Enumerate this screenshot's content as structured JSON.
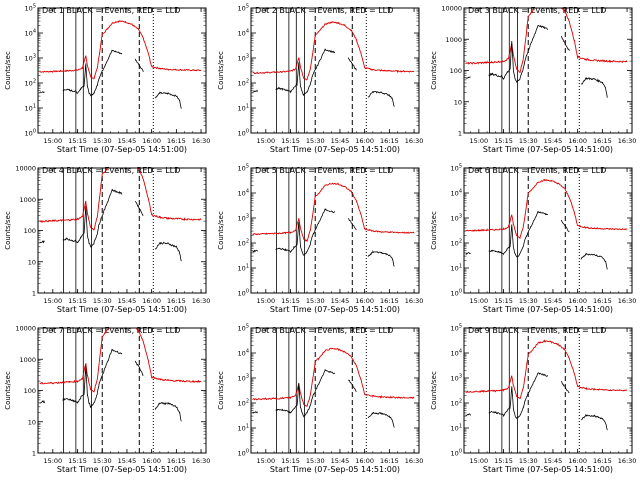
{
  "page": {
    "background": "#ffffff",
    "axis_color": "#000000",
    "events_color": "#000000",
    "lld_color": "#dd0000"
  },
  "chart_data": [
    {
      "type": "line",
      "title": "Det 1  BLACK = Events, RED = LLD",
      "xlabel": "Start Time (07-Sep-05 14:51:00)",
      "ylabel": "Counts/sec",
      "x_tick_labels": [
        "15:00",
        "15:15",
        "15:30",
        "15:45",
        "16:00",
        "16:15",
        "16:30"
      ],
      "xlim": [
        "14:51",
        "16:33"
      ],
      "yscale": "log",
      "ylim": [
        1,
        100000
      ],
      "y_tick_labels": [
        "10^0",
        "10^1",
        "10^2",
        "10^3",
        "10^4",
        "10^5"
      ],
      "y_tick_values": [
        1,
        10,
        100,
        1000,
        10000,
        100000
      ],
      "events_key": "detector_profile",
      "events_scale": 1.0,
      "lld_scale": 1.0
    },
    {
      "type": "line",
      "title": "Det 2  BLACK = Events, RED = LLD",
      "xlabel": "Start Time (07-Sep-05 14:51:00)",
      "ylabel": "Counts/sec",
      "x_tick_labels": [
        "15:00",
        "15:15",
        "15:30",
        "15:45",
        "16:00",
        "16:15",
        "16:30"
      ],
      "xlim": [
        "14:51",
        "16:33"
      ],
      "yscale": "log",
      "ylim": [
        1,
        100000
      ],
      "y_tick_labels": [
        "10^0",
        "10^1",
        "10^2",
        "10^3",
        "10^4",
        "10^5"
      ],
      "y_tick_values": [
        1,
        10,
        100,
        1000,
        10000,
        100000
      ],
      "events_scale": 1.1,
      "lld_scale": 0.9
    },
    {
      "type": "line",
      "title": "Det 3  BLACK = Events, RED = LLD",
      "xlabel": "Start Time (07-Sep-05 14:51:00)",
      "ylabel": "Counts/sec",
      "x_tick_labels": [
        "15:00",
        "15:15",
        "15:30",
        "15:45",
        "16:00",
        "16:15",
        "16:30"
      ],
      "xlim": [
        "14:51",
        "16:33"
      ],
      "yscale": "log",
      "ylim": [
        1,
        10000
      ],
      "y_tick_labels": [
        "1",
        "10",
        "100",
        "1000",
        "10000"
      ],
      "y_tick_values": [
        1,
        10,
        100,
        1000,
        10000
      ],
      "events_scale": 1.4,
      "lld_scale": 0.6
    },
    {
      "type": "line",
      "title": "Det 4  BLACK = Events, RED = LLD",
      "xlabel": "Start Time (07-Sep-05 14:51:00)",
      "ylabel": "Counts/sec",
      "x_tick_labels": [
        "15:00",
        "15:15",
        "15:30",
        "15:45",
        "16:00",
        "16:15",
        "16:30"
      ],
      "xlim": [
        "14:51",
        "16:33"
      ],
      "yscale": "log",
      "ylim": [
        1,
        10000
      ],
      "y_tick_labels": [
        "1",
        "10",
        "100",
        "1000",
        "10000"
      ],
      "y_tick_values": [
        1,
        10,
        100,
        1000,
        10000
      ],
      "events_scale": 1.0,
      "lld_scale": 0.7
    },
    {
      "type": "line",
      "title": "Det 5  BLACK = Events, RED = LLD",
      "xlabel": "Start Time (07-Sep-05 14:51:00)",
      "ylabel": "Counts/sec",
      "x_tick_labels": [
        "15:00",
        "15:15",
        "15:30",
        "15:45",
        "16:00",
        "16:15",
        "16:30"
      ],
      "xlim": [
        "14:51",
        "16:33"
      ],
      "yscale": "log",
      "ylim": [
        1,
        100000
      ],
      "y_tick_labels": [
        "10^0",
        "10^1",
        "10^2",
        "10^3",
        "10^4",
        "10^5"
      ],
      "y_tick_values": [
        1,
        10,
        100,
        1000,
        10000,
        100000
      ],
      "events_scale": 1.1,
      "lld_scale": 0.8
    },
    {
      "type": "line",
      "title": "Det 6  BLACK = Events, RED = LLD",
      "xlabel": "Start Time (07-Sep-05 14:51:00)",
      "ylabel": "Counts/sec",
      "x_tick_labels": [
        "15:00",
        "15:15",
        "15:30",
        "15:45",
        "16:00",
        "16:15",
        "16:30"
      ],
      "xlim": [
        "14:51",
        "16:33"
      ],
      "yscale": "log",
      "ylim": [
        1,
        100000
      ],
      "y_tick_labels": [
        "10^0",
        "10^1",
        "10^2",
        "10^3",
        "10^4",
        "10^5"
      ],
      "y_tick_values": [
        1,
        10,
        100,
        1000,
        10000,
        100000
      ],
      "events_scale": 0.9,
      "lld_scale": 1.1
    },
    {
      "type": "line",
      "title": "Det 7  BLACK = Events, RED = LLD",
      "xlabel": "Start Time (07-Sep-05 14:51:00)",
      "ylabel": "Counts/sec",
      "x_tick_labels": [
        "15:00",
        "15:15",
        "15:30",
        "15:45",
        "16:00",
        "16:15",
        "16:30"
      ],
      "xlim": [
        "14:51",
        "16:33"
      ],
      "yscale": "log",
      "ylim": [
        1,
        10000
      ],
      "y_tick_labels": [
        "1",
        "10",
        "100",
        "1000",
        "10000"
      ],
      "y_tick_values": [
        1,
        10,
        100,
        1000,
        10000
      ],
      "events_scale": 1.0,
      "lld_scale": 0.6
    },
    {
      "type": "line",
      "title": "Det 8  BLACK = Events, RED = LLD",
      "xlabel": "Start Time (07-Sep-05 14:51:00)",
      "ylabel": "Counts/sec",
      "x_tick_labels": [
        "15:00",
        "15:15",
        "15:30",
        "15:45",
        "16:00",
        "16:15",
        "16:30"
      ],
      "xlim": [
        "14:51",
        "16:33"
      ],
      "yscale": "log",
      "ylim": [
        1,
        100000
      ],
      "y_tick_labels": [
        "10^0",
        "10^1",
        "10^2",
        "10^3",
        "10^4",
        "10^5"
      ],
      "y_tick_values": [
        1,
        10,
        100,
        1000,
        10000,
        100000
      ],
      "events_scale": 1.0,
      "lld_scale": 0.5
    },
    {
      "type": "line",
      "title": "Det 9  BLACK = Events, RED = LLD",
      "xlabel": "Start Time (07-Sep-05 14:51:00)",
      "ylabel": "Counts/sec",
      "x_tick_labels": [
        "15:00",
        "15:15",
        "15:30",
        "15:45",
        "16:00",
        "16:15",
        "16:30"
      ],
      "xlim": [
        "14:51",
        "16:33"
      ],
      "yscale": "log",
      "ylim": [
        1,
        100000
      ],
      "y_tick_labels": [
        "10^0",
        "10^1",
        "10^2",
        "10^3",
        "10^4",
        "10^5"
      ],
      "y_tick_values": [
        1,
        10,
        100,
        1000,
        10000,
        100000
      ],
      "events_scale": 0.8,
      "lld_scale": 1.0
    }
  ],
  "time_markers": {
    "solid_minutes": [
      15.5,
      23,
      27.5,
      32.5
    ],
    "dashed_minutes": [
      39,
      61.5
    ],
    "dotted_minutes": [
      70
    ]
  },
  "detector_profile": {
    "events": [
      [
        "14:52",
        40
      ],
      [
        "14:54",
        45
      ],
      [
        "14:55",
        42
      ],
      [
        "15:06",
        50
      ],
      [
        "15:08",
        55
      ],
      [
        "15:10",
        52
      ],
      [
        "15:12",
        48
      ],
      [
        "15:14",
        45
      ],
      [
        "15:15",
        40
      ],
      [
        "15:17",
        60
      ],
      [
        "15:19",
        80
      ],
      [
        "15:20",
        600
      ],
      [
        "15:21",
        70
      ],
      [
        "15:22",
        40
      ],
      [
        "15:23",
        30
      ],
      [
        "15:25",
        40
      ],
      [
        "15:27",
        80
      ],
      [
        "15:28",
        150
      ],
      [
        "15:29",
        220
      ],
      [
        "15:30",
        300
      ],
      [
        "15:36",
        2000
      ],
      [
        "15:42",
        1500
      ],
      [
        "15:50",
        900
      ],
      [
        "15:55",
        300
      ],
      [
        "16:02",
        25
      ],
      [
        "16:05",
        40
      ],
      [
        "16:10",
        38
      ],
      [
        "16:15",
        30
      ],
      [
        "16:17",
        20
      ],
      [
        "16:18",
        10
      ]
    ],
    "lld": [
      [
        "14:52",
        280
      ],
      [
        "15:00",
        290
      ],
      [
        "15:05",
        300
      ],
      [
        "15:10",
        310
      ],
      [
        "15:15",
        330
      ],
      [
        "15:18",
        400
      ],
      [
        "15:20",
        1200
      ],
      [
        "15:21",
        500
      ],
      [
        "15:23",
        180
      ],
      [
        "15:25",
        150
      ],
      [
        "15:27",
        400
      ],
      [
        "15:29",
        3000
      ],
      [
        "15:30",
        9000
      ],
      [
        "15:32",
        12000
      ],
      [
        "15:36",
        25000
      ],
      [
        "15:40",
        30000
      ],
      [
        "15:44",
        28000
      ],
      [
        "15:48",
        22000
      ],
      [
        "15:52",
        14000
      ],
      [
        "15:55",
        6000
      ],
      [
        "15:58",
        1500
      ],
      [
        "16:00",
        450
      ],
      [
        "16:05",
        380
      ],
      [
        "16:10",
        350
      ],
      [
        "16:20",
        330
      ],
      [
        "16:30",
        320
      ]
    ]
  }
}
